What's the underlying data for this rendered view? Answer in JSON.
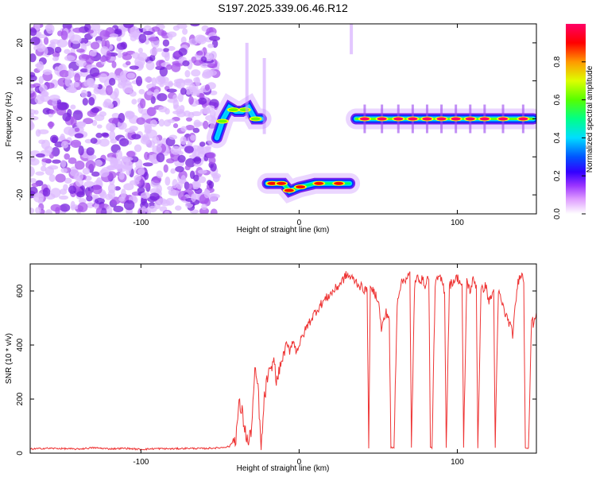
{
  "title": "S197.2025.339.06.46.R12",
  "chart_data": [
    {
      "type": "heatmap",
      "title": "S197.2025.339.06.46.R12",
      "xlabel": "Height of straight line (km)",
      "ylabel": "Frequency (Hz)",
      "xlim": [
        -170,
        150
      ],
      "ylim": [
        -25,
        25
      ],
      "xticks": [
        -100,
        0,
        100
      ],
      "yticks": [
        -20,
        -10,
        0,
        10,
        20
      ],
      "colorbar": {
        "label": "Normalized spectral amplitude",
        "range": [
          0,
          1
        ],
        "ticks": [
          0.0,
          0.2,
          0.4,
          0.6,
          0.8
        ],
        "colors": [
          "#ffffff",
          "#cc66ff",
          "#6600cc",
          "#0000ff",
          "#00ccff",
          "#00ff66",
          "#66ff00",
          "#ffff00",
          "#ff9900",
          "#ff0000",
          "#ff0066"
        ]
      },
      "regions": [
        {
          "name": "noise",
          "x_range": [
            -170,
            -52
          ],
          "y_range": [
            -25,
            25
          ],
          "description": "scattered low-amplitude noise"
        },
        {
          "name": "rising-segment",
          "points": [
            [
              -52,
              -5
            ],
            [
              -48,
              0
            ],
            [
              -44,
              3
            ],
            [
              -40,
              2
            ],
            [
              -36,
              2
            ],
            [
              -32,
              3
            ],
            [
              -28,
              0
            ],
            [
              -24,
              0
            ]
          ],
          "amplitude": 0.6
        },
        {
          "name": "low-band",
          "points": [
            [
              -20,
              -17
            ],
            [
              -15,
              -17
            ],
            [
              -10,
              -17
            ],
            [
              -6,
              -19
            ],
            [
              0,
              -18
            ],
            [
              10,
              -17
            ],
            [
              20,
              -17
            ],
            [
              32,
              -17
            ]
          ],
          "amplitude": 0.85
        },
        {
          "name": "zero-band",
          "points": [
            [
              36,
              0
            ],
            [
              60,
              0
            ],
            [
              80,
              0
            ],
            [
              100,
              0
            ],
            [
              120,
              0
            ],
            [
              148,
              0
            ]
          ],
          "amplitude": 0.95
        }
      ]
    },
    {
      "type": "line",
      "xlabel": "Height of straight line (km)",
      "ylabel": "SNR (10 * v/v)",
      "xlim": [
        -170,
        150
      ],
      "ylim": [
        0,
        700
      ],
      "xticks": [
        -100,
        0,
        100
      ],
      "yticks": [
        0,
        200,
        400,
        600
      ],
      "color": "#ee3333",
      "series": [
        {
          "name": "SNR",
          "x": [
            -170,
            -160,
            -150,
            -140,
            -130,
            -120,
            -110,
            -100,
            -90,
            -80,
            -70,
            -60,
            -50,
            -44,
            -40,
            -38,
            -36,
            -34,
            -32,
            -30,
            -28,
            -26,
            -24,
            -22,
            -20,
            -18,
            -16,
            -14,
            -12,
            -10,
            -8,
            -6,
            -4,
            -2,
            0,
            5,
            10,
            15,
            20,
            25,
            30,
            35,
            40,
            43,
            44,
            45,
            47,
            50,
            52,
            55,
            57,
            58,
            60,
            62,
            64,
            66,
            70,
            71,
            73,
            75,
            78,
            80,
            82,
            83,
            84,
            86,
            88,
            90,
            92,
            93,
            95,
            98,
            100,
            103,
            104,
            106,
            108,
            110,
            112,
            113,
            115,
            118,
            120,
            123,
            124,
            126,
            128,
            130,
            133,
            135,
            138,
            140,
            142,
            143,
            145,
            147,
            148,
            150
          ],
          "y": [
            15,
            18,
            17,
            15,
            20,
            16,
            18,
            14,
            17,
            16,
            18,
            17,
            20,
            25,
            60,
            180,
            150,
            80,
            30,
            100,
            300,
            250,
            10,
            200,
            280,
            300,
            350,
            260,
            320,
            360,
            400,
            380,
            420,
            380,
            400,
            470,
            520,
            560,
            590,
            620,
            660,
            640,
            610,
            600,
            20,
            600,
            600,
            570,
            460,
            520,
            500,
            20,
            20,
            560,
            620,
            640,
            660,
            20,
            620,
            650,
            640,
            620,
            660,
            20,
            20,
            620,
            650,
            640,
            600,
            20,
            620,
            640,
            650,
            620,
            20,
            640,
            600,
            640,
            620,
            20,
            600,
            620,
            560,
            600,
            20,
            600,
            560,
            520,
            480,
            440,
            620,
            670,
            640,
            20,
            20,
            500,
            480,
            520
          ]
        }
      ]
    }
  ]
}
